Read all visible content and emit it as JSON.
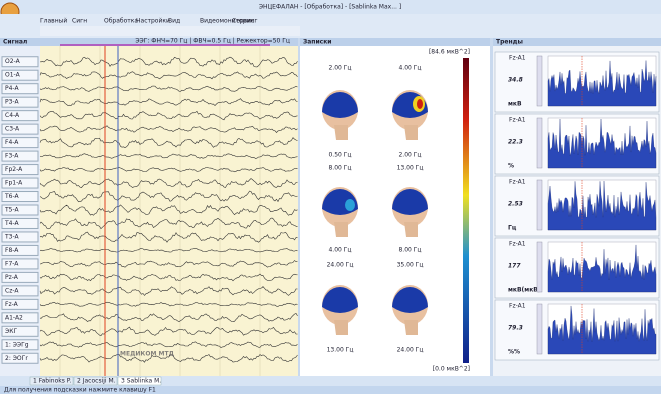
{
  "title_bar": {
    "title": "ЭНЦЕФАЛАН - [Обработка] - [Sablinka Max... ]"
  },
  "menu": [
    "Главный",
    "Сигн",
    "Обработка",
    "Настройки",
    "Вид",
    "Видеомониторинг",
    "Сервис"
  ],
  "filter_info": "ЭЭГ: ФНЧ=70 Гц | ФВЧ=0.5 Гц | Режектор=50 Гц",
  "panels": {
    "signal": "Сигнал",
    "maps": "Записки",
    "trends": "Тренды"
  },
  "channels": [
    "O2-A",
    "O1-A",
    "P4-A",
    "P3-A",
    "C4-A",
    "C3-A",
    "F4-A",
    "F3-A",
    "Fp2-A",
    "Fp1-A",
    "T6-A",
    "T5-A",
    "T4-A",
    "T3-A",
    "F8-A",
    "F7-A",
    "Pz-A",
    "Cz-A",
    "Fz-A",
    "A1-A2",
    "ЭКГ",
    "1: ЭЭГg",
    "2: ЭОГr"
  ],
  "maps": {
    "scale_max": "[84.6 мкВ^2]",
    "scale_min": "[0.0 мкВ^2]",
    "labels": [
      "2.00 Гц",
      "4.00 Гц",
      "0.50 Гц",
      "2.00 Гц",
      "8.00 Гц",
      "13.00 Гц",
      "4.00 Гц",
      "8.00 Гц",
      "24.00 Гц",
      "35.00 Гц",
      "13.00 Гц",
      "24.00 Гц"
    ]
  },
  "trends": [
    {
      "channel": "Fz-A1",
      "value": "34.8",
      "unit": "мкВ"
    },
    {
      "channel": "Fz-A1",
      "value": "22.3",
      "unit": "%"
    },
    {
      "channel": "Fz-A1",
      "value": "2.53",
      "unit": "Гц"
    },
    {
      "channel": "Fz-A1",
      "value": "177",
      "unit": "мкВ(мкВ)"
    },
    {
      "channel": "Fz-A1",
      "value": "79.3",
      "unit": "%%"
    }
  ],
  "watermark": "МЕДИКОМ МТД",
  "tabs": [
    "1 Fabinoks P.",
    "2 Jacocsiji M.",
    "3 Sablinka M."
  ],
  "status": "Для получения подсказки нажмите клавишу F1"
}
